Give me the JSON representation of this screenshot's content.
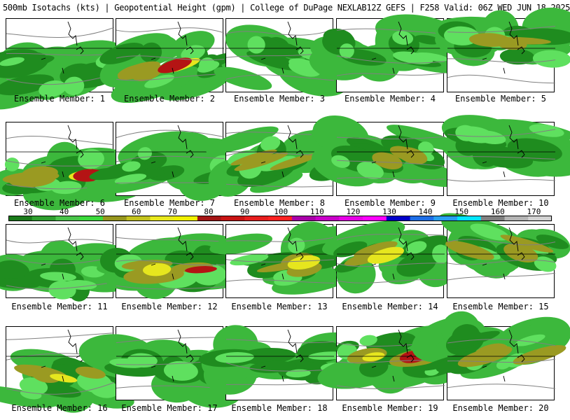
{
  "header": {
    "left": "500mb Isotachs (kts) | Geopotential Height (gpm) | College of DuPage NEXLAB",
    "right": "12Z GEFS | F258 Valid: 06Z WED JUN 18 2025"
  },
  "colorbar": {
    "ticks": [
      "30",
      "40",
      "50",
      "60",
      "70",
      "80",
      "90",
      "100",
      "110",
      "120",
      "130",
      "140",
      "150",
      "160",
      "170"
    ],
    "colors": [
      "#1a7a1a",
      "#2f9f2f",
      "#49c449",
      "#3bd93b",
      "#96961e",
      "#c3c31e",
      "#e8e81e",
      "#f0f000",
      "#a31414",
      "#c81414",
      "#e61e1e",
      "#ff2222",
      "#a800a8",
      "#c800c8",
      "#e600e6",
      "#ff00ff",
      "#0000c8",
      "#1e6ee6",
      "#28a0f0",
      "#00e6ff",
      "#808080",
      "#b4b4b4",
      "#d2d2d2"
    ]
  },
  "members": [
    {
      "label": "Ensemble Member: 1",
      "intensity": 1
    },
    {
      "label": "Ensemble Member: 2",
      "intensity": 4
    },
    {
      "label": "Ensemble Member: 3",
      "intensity": 1
    },
    {
      "label": "Ensemble Member: 4",
      "intensity": 1
    },
    {
      "label": "Ensemble Member: 5",
      "intensity": 2
    },
    {
      "label": "Ensemble Member: 6",
      "intensity": 4
    },
    {
      "label": "Ensemble Member: 7",
      "intensity": 1
    },
    {
      "label": "Ensemble Member: 8",
      "intensity": 2
    },
    {
      "label": "Ensemble Member: 9",
      "intensity": 2
    },
    {
      "label": "Ensemble Member: 10",
      "intensity": 1
    },
    {
      "label": "Ensemble Member: 11",
      "intensity": 1
    },
    {
      "label": "Ensemble Member: 12",
      "intensity": 4
    },
    {
      "label": "Ensemble Member: 13",
      "intensity": 3
    },
    {
      "label": "Ensemble Member: 14",
      "intensity": 3
    },
    {
      "label": "Ensemble Member: 15",
      "intensity": 2
    },
    {
      "label": "Ensemble Member: 16",
      "intensity": 3
    },
    {
      "label": "Ensemble Member: 17",
      "intensity": 1
    },
    {
      "label": "Ensemble Member: 18",
      "intensity": 1
    },
    {
      "label": "Ensemble Member: 19",
      "intensity": 4
    },
    {
      "label": "Ensemble Member: 20",
      "intensity": 2
    }
  ],
  "palette": {
    "green_dark": "#1f8c1f",
    "green": "#3cb83c",
    "green_light": "#5fe05f",
    "olive": "#9a9a22",
    "yellow": "#e6e61e",
    "red": "#b41414",
    "contour": "#808080"
  }
}
